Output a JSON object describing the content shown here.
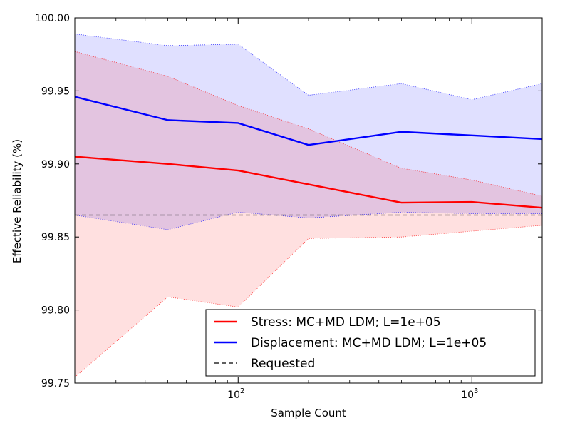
{
  "chart_data": {
    "type": "line",
    "xlabel": "Sample Count",
    "ylabel": "Effective Reliability (%)",
    "xscale": "log",
    "xlim": [
      20,
      2000
    ],
    "ylim": [
      99.75,
      100.0
    ],
    "x_ticks": [
      100,
      1000
    ],
    "x_tick_labels": [
      {
        "base": "10",
        "exp": "2"
      },
      {
        "base": "10",
        "exp": "3"
      }
    ],
    "y_ticks": [
      "99.75",
      "99.80",
      "99.85",
      "99.90",
      "99.95",
      "100.00"
    ],
    "legend_position": "lower-right",
    "x": [
      20,
      50,
      100,
      200,
      500,
      1000,
      2000
    ],
    "series": [
      {
        "name": "Stress: MC+MD LDM; L=1e+05",
        "color": "#ff0000",
        "band_color": "#ffe0e0",
        "values": [
          99.905,
          99.9,
          99.8955,
          99.886,
          99.8735,
          99.874,
          99.87
        ],
        "upper": [
          99.977,
          99.96,
          99.94,
          99.924,
          99.897,
          99.889,
          99.878
        ],
        "lower": [
          99.754,
          99.809,
          99.802,
          99.849,
          99.85,
          99.854,
          99.858
        ]
      },
      {
        "name": "Displacement: MC+MD LDM; L=1e+05",
        "color": "#0000ff",
        "band_color": "#e0e0ff",
        "values": [
          99.946,
          99.93,
          99.928,
          99.913,
          99.922,
          99.9195,
          99.917
        ],
        "upper": [
          99.989,
          99.981,
          99.982,
          99.947,
          99.955,
          99.944,
          99.955
        ],
        "lower": [
          99.865,
          99.855,
          99.867,
          99.863,
          99.867,
          99.866,
          99.866
        ]
      }
    ],
    "reference": {
      "name": "Requested",
      "value": 99.865,
      "color": "#000000",
      "style": "dashed"
    }
  }
}
